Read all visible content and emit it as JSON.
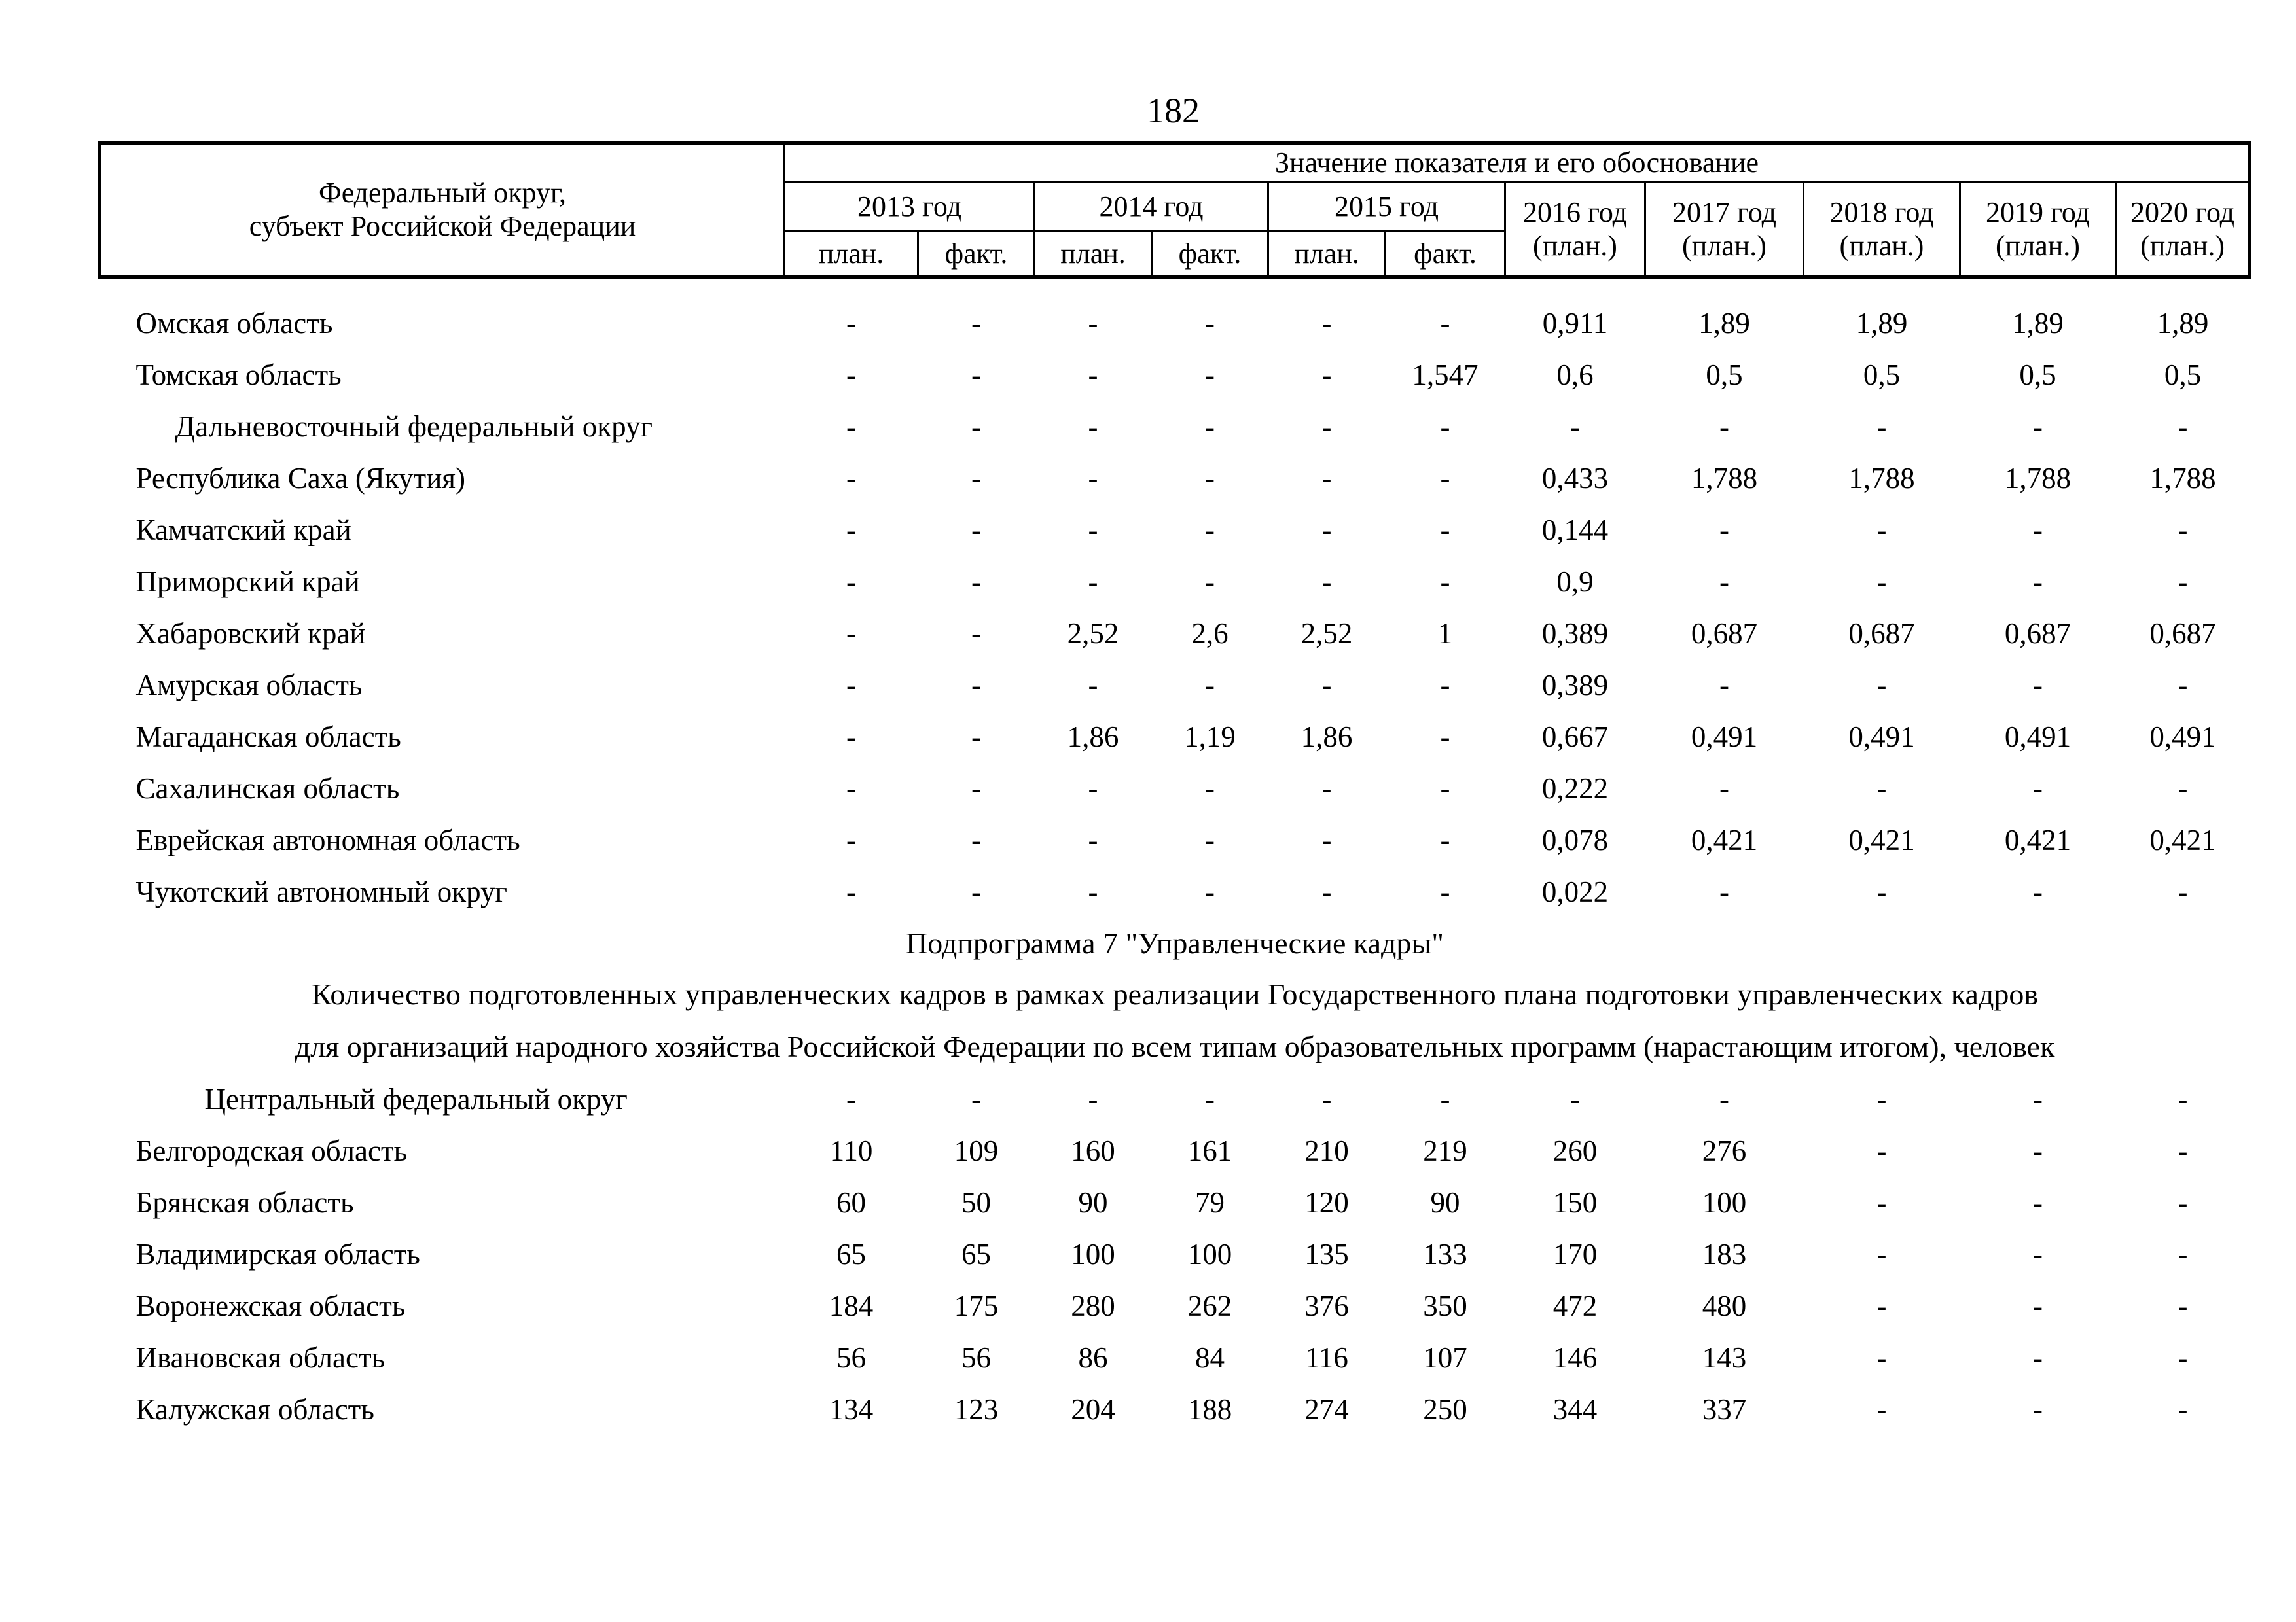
{
  "page_number": "182",
  "table": {
    "header": {
      "region_col": "Федеральный округ,\nсубъект Российской Федерации",
      "group_title": "Значение показателя и его обоснование",
      "year_groups": [
        {
          "label": "2013 год",
          "sub": [
            "план.",
            "факт."
          ]
        },
        {
          "label": "2014 год",
          "sub": [
            "план.",
            "факт."
          ]
        },
        {
          "label": "2015 год",
          "sub": [
            "план.",
            "факт."
          ]
        }
      ],
      "plan_years": [
        "2016 год\n(план.)",
        "2017 год\n(план.)",
        "2018 год\n(план.)",
        "2019 год\n(план.)",
        "2020 год\n(план.)"
      ]
    },
    "sections": [
      {
        "rows": [
          {
            "name": "Омская область",
            "indent": 0,
            "values": [
              "-",
              "-",
              "-",
              "-",
              "-",
              "-",
              "0,911",
              "1,89",
              "1,89",
              "1,89",
              "1,89"
            ]
          },
          {
            "name": "Томская область",
            "indent": 0,
            "values": [
              "-",
              "-",
              "-",
              "-",
              "-",
              "1,547",
              "0,6",
              "0,5",
              "0,5",
              "0,5",
              "0,5"
            ]
          },
          {
            "name": "Дальневосточный федеральный округ",
            "indent": 1,
            "values": [
              "-",
              "-",
              "-",
              "-",
              "-",
              "-",
              "-",
              "-",
              "-",
              "-",
              "-"
            ]
          },
          {
            "name": "Республика Саха (Якутия)",
            "indent": 0,
            "values": [
              "-",
              "-",
              "-",
              "-",
              "-",
              "-",
              "0,433",
              "1,788",
              "1,788",
              "1,788",
              "1,788"
            ]
          },
          {
            "name": "Камчатский край",
            "indent": 0,
            "values": [
              "-",
              "-",
              "-",
              "-",
              "-",
              "-",
              "0,144",
              "-",
              "-",
              "-",
              "-"
            ]
          },
          {
            "name": "Приморский край",
            "indent": 0,
            "values": [
              "-",
              "-",
              "-",
              "-",
              "-",
              "-",
              "0,9",
              "-",
              "-",
              "-",
              "-"
            ]
          },
          {
            "name": "Хабаровский край",
            "indent": 0,
            "values": [
              "-",
              "-",
              "2,52",
              "2,6",
              "2,52",
              "1",
              "0,389",
              "0,687",
              "0,687",
              "0,687",
              "0,687"
            ]
          },
          {
            "name": "Амурская область",
            "indent": 0,
            "values": [
              "-",
              "-",
              "-",
              "-",
              "-",
              "-",
              "0,389",
              "-",
              "-",
              "-",
              "-"
            ]
          },
          {
            "name": "Магаданская область",
            "indent": 0,
            "values": [
              "-",
              "-",
              "1,86",
              "1,19",
              "1,86",
              "-",
              "0,667",
              "0,491",
              "0,491",
              "0,491",
              "0,491"
            ]
          },
          {
            "name": "Сахалинская область",
            "indent": 0,
            "values": [
              "-",
              "-",
              "-",
              "-",
              "-",
              "-",
              "0,222",
              "-",
              "-",
              "-",
              "-"
            ]
          },
          {
            "name": "Еврейская автономная область",
            "indent": 0,
            "values": [
              "-",
              "-",
              "-",
              "-",
              "-",
              "-",
              "0,078",
              "0,421",
              "0,421",
              "0,421",
              "0,421"
            ]
          },
          {
            "name": "Чукотский автономный округ",
            "indent": 0,
            "values": [
              "-",
              "-",
              "-",
              "-",
              "-",
              "-",
              "0,022",
              "-",
              "-",
              "-",
              "-"
            ]
          }
        ]
      },
      {
        "rows": [
          {
            "name": "Центральный федеральный округ",
            "indent": 2,
            "values": [
              "-",
              "-",
              "-",
              "-",
              "-",
              "-",
              "-",
              "-",
              "-",
              "-",
              "-"
            ]
          },
          {
            "name": "Белгородская область",
            "indent": 0,
            "values": [
              "110",
              "109",
              "160",
              "161",
              "210",
              "219",
              "260",
              "276",
              "-",
              "-",
              "-"
            ]
          },
          {
            "name": "Брянская область",
            "indent": 0,
            "values": [
              "60",
              "50",
              "90",
              "79",
              "120",
              "90",
              "150",
              "100",
              "-",
              "-",
              "-"
            ]
          },
          {
            "name": "Владимирская область",
            "indent": 0,
            "values": [
              "65",
              "65",
              "100",
              "100",
              "135",
              "133",
              "170",
              "183",
              "-",
              "-",
              "-"
            ]
          },
          {
            "name": "Воронежская область",
            "indent": 0,
            "values": [
              "184",
              "175",
              "280",
              "262",
              "376",
              "350",
              "472",
              "480",
              "-",
              "-",
              "-"
            ]
          },
          {
            "name": "Ивановская область",
            "indent": 0,
            "values": [
              "56",
              "56",
              "86",
              "84",
              "116",
              "107",
              "146",
              "143",
              "-",
              "-",
              "-"
            ]
          },
          {
            "name": "Калужская область",
            "indent": 0,
            "values": [
              "134",
              "123",
              "204",
              "188",
              "274",
              "250",
              "344",
              "337",
              "-",
              "-",
              "-"
            ]
          }
        ]
      }
    ]
  },
  "subprogram_title": "Подпрограмма 7 \"Управленческие кадры\"",
  "indicator": {
    "line1": "Количество подготовленных управленческих кадров в рамках реализации Государственного плана подготовки управленческих кадров",
    "line2": "для организаций народного хозяйства Российской Федерации по всем типам образовательных программ (нарастающим итогом), человек"
  }
}
